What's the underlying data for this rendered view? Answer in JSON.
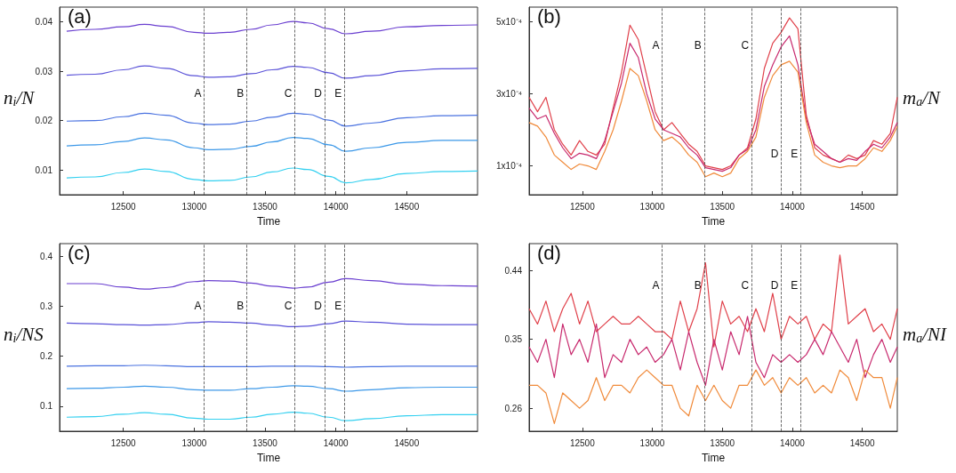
{
  "chart_data": [
    {
      "type": "line",
      "title": "(a)",
      "xlabel": "Time",
      "ylabel": "n$_{i}$/N",
      "marker": "none",
      "x": [
        12100,
        12300,
        12500,
        12650,
        12800,
        13000,
        13100,
        13250,
        13400,
        13550,
        13700,
        13800,
        13950,
        14070,
        14250,
        14500,
        14750,
        15000
      ],
      "xlim": [
        12050,
        15000
      ],
      "xticks": [
        12500,
        13000,
        13500,
        14000,
        14500
      ],
      "ylim": [
        0.005,
        0.043
      ],
      "yticks": [
        0.01,
        0.02,
        0.03,
        0.04
      ],
      "series": [
        {
          "color": "#6a3fd0",
          "values": [
            0.0381,
            0.0385,
            0.039,
            0.0395,
            0.0391,
            0.0379,
            0.0377,
            0.0379,
            0.0385,
            0.0394,
            0.0401,
            0.0398,
            0.0386,
            0.0376,
            0.0381,
            0.039,
            0.0393,
            0.0394
          ]
        },
        {
          "color": "#5a52d8",
          "values": [
            0.0292,
            0.0294,
            0.0303,
            0.0311,
            0.0306,
            0.0291,
            0.0288,
            0.0289,
            0.0295,
            0.0303,
            0.031,
            0.0308,
            0.0297,
            0.0286,
            0.0291,
            0.0301,
            0.0305,
            0.0306
          ]
        },
        {
          "color": "#4a72e0",
          "values": [
            0.0199,
            0.02,
            0.0208,
            0.0215,
            0.0211,
            0.0195,
            0.0192,
            0.0193,
            0.0199,
            0.0207,
            0.0215,
            0.0213,
            0.0201,
            0.0189,
            0.0195,
            0.0206,
            0.021,
            0.0211
          ]
        },
        {
          "color": "#3c98e8",
          "values": [
            0.0149,
            0.0151,
            0.0158,
            0.0165,
            0.0161,
            0.0145,
            0.0141,
            0.0142,
            0.0148,
            0.0157,
            0.0166,
            0.0164,
            0.0151,
            0.0138,
            0.0145,
            0.0156,
            0.016,
            0.016
          ]
        },
        {
          "color": "#33d0f0",
          "values": [
            0.0084,
            0.0086,
            0.0095,
            0.0102,
            0.0097,
            0.0081,
            0.0078,
            0.0079,
            0.0086,
            0.0096,
            0.0104,
            0.0101,
            0.0087,
            0.0074,
            0.0081,
            0.0093,
            0.0097,
            0.0098
          ]
        }
      ],
      "ref_lines": [
        {
          "axis": "x",
          "value": 13070,
          "line_style": "dashed"
        },
        {
          "axis": "x",
          "value": 13370,
          "line_style": "dashed"
        },
        {
          "axis": "x",
          "value": 13710,
          "line_style": "dashed"
        },
        {
          "axis": "x",
          "value": 13920,
          "line_style": "dashed"
        },
        {
          "axis": "x",
          "value": 14060,
          "line_style": "dashed"
        }
      ],
      "annotations": [
        {
          "text": "A",
          "x": 13070,
          "y": 0.0255
        },
        {
          "text": "B",
          "x": 13370,
          "y": 0.0255
        },
        {
          "text": "C",
          "x": 13710,
          "y": 0.0255
        },
        {
          "text": "D",
          "x": 13920,
          "y": 0.0255
        },
        {
          "text": "E",
          "x": 14060,
          "y": 0.0255
        }
      ]
    },
    {
      "type": "line",
      "title": "(b)",
      "xlabel": "Time",
      "ylabel": "m$_{a}$/N",
      "marker": "none",
      "x": [
        12120,
        12180,
        12240,
        12300,
        12360,
        12420,
        12480,
        12540,
        12600,
        12660,
        12720,
        12780,
        12840,
        12900,
        12960,
        13020,
        13080,
        13140,
        13200,
        13260,
        13320,
        13380,
        13440,
        13500,
        13560,
        13620,
        13680,
        13740,
        13800,
        13860,
        13920,
        13980,
        14040,
        14100,
        14160,
        14220,
        14280,
        14340,
        14400,
        14460,
        14520,
        14580,
        14640,
        14700,
        14750
      ],
      "xlim": [
        12120,
        14750
      ],
      "xticks": [
        12500,
        13000,
        13500,
        14000,
        14500
      ],
      "ylim": [
        2e-05,
        0.00054
      ],
      "yticks": [
        {
          "value": 0.0001,
          "label": "1x10⁻⁴"
        },
        {
          "value": 0.0003,
          "label": "3x10⁻⁴"
        },
        {
          "value": 0.0005,
          "label": "5x10⁻⁴"
        }
      ],
      "series": [
        {
          "color": "#e0404a",
          "values": [
            0.00029,
            0.00025,
            0.00029,
            0.0002,
            0.00016,
            0.00013,
            0.00017,
            0.00014,
            0.00013,
            0.00016,
            0.00026,
            0.00036,
            0.00049,
            0.00045,
            0.00035,
            0.00025,
            0.0002,
            0.00022,
            0.00019,
            0.00016,
            0.00014,
            0.0001,
            9.5e-05,
            9e-05,
            0.0001,
            0.00013,
            0.00015,
            0.00023,
            0.00037,
            0.00044,
            0.00047,
            0.00051,
            0.00048,
            0.00024,
            0.00015,
            0.00013,
            0.00012,
            0.00011,
            0.00013,
            0.00012,
            0.00013,
            0.00017,
            0.00016,
            0.00019,
            0.00029
          ]
        },
        {
          "color": "#c82a6e",
          "values": [
            0.00026,
            0.00023,
            0.00024,
            0.00019,
            0.00015,
            0.00012,
            0.000135,
            0.00013,
            0.00012,
            0.00017,
            0.00025,
            0.00033,
            0.00044,
            0.0004,
            0.0003,
            0.00023,
            0.0002,
            0.00019,
            0.00018,
            0.00015,
            0.00013,
            9.5e-05,
            9e-05,
            8.5e-05,
            9.5e-05,
            0.00013,
            0.000145,
            0.0002,
            0.00032,
            0.00038,
            0.00043,
            0.00046,
            0.00038,
            0.00023,
            0.00016,
            0.00014,
            0.00012,
            0.00011,
            0.00012,
            0.000115,
            0.00014,
            0.00016,
            0.00015,
            0.00018,
            0.00022
          ]
        },
        {
          "color": "#f08a3a",
          "values": [
            0.00022,
            0.00021,
            0.00018,
            0.00013,
            0.00011,
            9e-05,
            0.000105,
            0.0001,
            9e-05,
            0.00014,
            0.0002,
            0.00028,
            0.00037,
            0.00035,
            0.00028,
            0.0002,
            0.00017,
            0.00018,
            0.00016,
            0.00013,
            0.00011,
            7e-05,
            8e-05,
            7e-05,
            8e-05,
            0.00012,
            0.00014,
            0.00018,
            0.00029,
            0.00035,
            0.00038,
            0.00039,
            0.00036,
            0.00022,
            0.00013,
            0.00011,
            0.0001,
            9.5e-05,
            0.0001,
            0.0001,
            0.00012,
            0.00015,
            0.00014,
            0.00017,
            0.00021
          ]
        }
      ],
      "ref_lines": [
        {
          "axis": "x",
          "value": 13070,
          "line_style": "dashed"
        },
        {
          "axis": "x",
          "value": 13370,
          "line_style": "dashed"
        },
        {
          "axis": "x",
          "value": 13710,
          "line_style": "dashed"
        },
        {
          "axis": "x",
          "value": 13920,
          "line_style": "dashed"
        },
        {
          "axis": "x",
          "value": 14060,
          "line_style": "dashed"
        }
      ],
      "annotations": [
        {
          "text": "A",
          "x": 13070,
          "y": 0.000433
        },
        {
          "text": "B",
          "x": 13370,
          "y": 0.000433
        },
        {
          "text": "C",
          "x": 13710,
          "y": 0.000433
        },
        {
          "text": "D",
          "x": 13920,
          "y": 0.000134
        },
        {
          "text": "E",
          "x": 14060,
          "y": 0.000134
        }
      ]
    },
    {
      "type": "line",
      "title": "(c)",
      "xlabel": "Time",
      "ylabel": "n$_{i}$/NS",
      "marker": "none",
      "x": [
        12100,
        12300,
        12500,
        12650,
        12800,
        13000,
        13100,
        13250,
        13400,
        13550,
        13700,
        13800,
        13950,
        14070,
        14250,
        14500,
        14750,
        15000
      ],
      "xlim": [
        12050,
        15000
      ],
      "xticks": [
        12500,
        13000,
        13500,
        14000,
        14500
      ],
      "ylim": [
        0.05,
        0.425
      ],
      "yticks": [
        0.1,
        0.2,
        0.3,
        0.4
      ],
      "series": [
        {
          "color": "#6a3fd0",
          "values": [
            0.345,
            0.345,
            0.338,
            0.334,
            0.337,
            0.349,
            0.351,
            0.35,
            0.346,
            0.34,
            0.336,
            0.338,
            0.348,
            0.355,
            0.351,
            0.344,
            0.341,
            0.34
          ]
        },
        {
          "color": "#5a52d8",
          "values": [
            0.266,
            0.265,
            0.263,
            0.262,
            0.263,
            0.267,
            0.269,
            0.268,
            0.266,
            0.262,
            0.259,
            0.26,
            0.265,
            0.27,
            0.268,
            0.264,
            0.263,
            0.263
          ]
        },
        {
          "color": "#4a72e0",
          "values": [
            0.18,
            0.181,
            0.181,
            0.182,
            0.181,
            0.179,
            0.179,
            0.179,
            0.179,
            0.18,
            0.18,
            0.18,
            0.179,
            0.178,
            0.179,
            0.18,
            0.18,
            0.18
          ]
        },
        {
          "color": "#3c98e8",
          "values": [
            0.135,
            0.136,
            0.138,
            0.14,
            0.138,
            0.133,
            0.132,
            0.132,
            0.135,
            0.138,
            0.141,
            0.14,
            0.135,
            0.13,
            0.133,
            0.137,
            0.138,
            0.138
          ]
        },
        {
          "color": "#33d0f0",
          "values": [
            0.078,
            0.079,
            0.084,
            0.087,
            0.084,
            0.076,
            0.074,
            0.074,
            0.078,
            0.084,
            0.088,
            0.086,
            0.078,
            0.071,
            0.075,
            0.081,
            0.083,
            0.083
          ]
        }
      ],
      "ref_lines": [
        {
          "axis": "x",
          "value": 13070,
          "line_style": "dashed"
        },
        {
          "axis": "x",
          "value": 13370,
          "line_style": "dashed"
        },
        {
          "axis": "x",
          "value": 13710,
          "line_style": "dashed"
        },
        {
          "axis": "x",
          "value": 13920,
          "line_style": "dashed"
        },
        {
          "axis": "x",
          "value": 14060,
          "line_style": "dashed"
        }
      ],
      "annotations": [
        {
          "text": "A",
          "x": 13070,
          "y": 0.301
        },
        {
          "text": "B",
          "x": 13370,
          "y": 0.301
        },
        {
          "text": "C",
          "x": 13710,
          "y": 0.301
        },
        {
          "text": "D",
          "x": 13920,
          "y": 0.301
        },
        {
          "text": "E",
          "x": 14060,
          "y": 0.301
        }
      ]
    },
    {
      "type": "line",
      "title": "(d)",
      "xlabel": "Time",
      "ylabel": "m$_{a}$/NI",
      "marker": "none",
      "x": [
        12120,
        12180,
        12240,
        12300,
        12360,
        12420,
        12480,
        12540,
        12600,
        12660,
        12720,
        12780,
        12840,
        12900,
        12960,
        13020,
        13080,
        13140,
        13200,
        13260,
        13320,
        13380,
        13440,
        13500,
        13560,
        13620,
        13680,
        13740,
        13800,
        13860,
        13920,
        13980,
        14040,
        14100,
        14160,
        14220,
        14280,
        14340,
        14400,
        14460,
        14520,
        14580,
        14640,
        14700,
        14750
      ],
      "xlim": [
        12120,
        14750
      ],
      "xticks": [
        12500,
        13000,
        13500,
        14000,
        14500
      ],
      "ylim": [
        0.23,
        0.475
      ],
      "yticks": [
        0.26,
        0.35,
        0.44
      ],
      "series": [
        {
          "color": "#e0404a",
          "values": [
            0.39,
            0.37,
            0.4,
            0.36,
            0.39,
            0.41,
            0.37,
            0.4,
            0.36,
            0.37,
            0.38,
            0.37,
            0.37,
            0.38,
            0.37,
            0.36,
            0.36,
            0.35,
            0.4,
            0.36,
            0.39,
            0.45,
            0.34,
            0.4,
            0.37,
            0.38,
            0.36,
            0.39,
            0.36,
            0.41,
            0.35,
            0.38,
            0.37,
            0.38,
            0.35,
            0.37,
            0.36,
            0.46,
            0.37,
            0.38,
            0.39,
            0.36,
            0.37,
            0.35,
            0.39
          ]
        },
        {
          "color": "#c82a6e",
          "values": [
            0.34,
            0.32,
            0.35,
            0.3,
            0.37,
            0.33,
            0.35,
            0.32,
            0.37,
            0.3,
            0.33,
            0.32,
            0.35,
            0.33,
            0.34,
            0.32,
            0.33,
            0.35,
            0.31,
            0.36,
            0.32,
            0.29,
            0.35,
            0.31,
            0.36,
            0.33,
            0.38,
            0.32,
            0.3,
            0.33,
            0.32,
            0.33,
            0.32,
            0.33,
            0.35,
            0.33,
            0.36,
            0.34,
            0.32,
            0.35,
            0.3,
            0.33,
            0.35,
            0.32,
            0.34
          ]
        },
        {
          "color": "#f08a3a",
          "values": [
            0.29,
            0.29,
            0.28,
            0.24,
            0.28,
            0.27,
            0.26,
            0.27,
            0.3,
            0.27,
            0.29,
            0.29,
            0.28,
            0.3,
            0.31,
            0.3,
            0.29,
            0.29,
            0.26,
            0.25,
            0.29,
            0.27,
            0.29,
            0.27,
            0.26,
            0.29,
            0.29,
            0.31,
            0.29,
            0.3,
            0.28,
            0.3,
            0.29,
            0.3,
            0.28,
            0.29,
            0.28,
            0.31,
            0.3,
            0.27,
            0.31,
            0.3,
            0.3,
            0.26,
            0.3
          ]
        }
      ],
      "ref_lines": [
        {
          "axis": "x",
          "value": 13070,
          "line_style": "dashed"
        },
        {
          "axis": "x",
          "value": 13370,
          "line_style": "dashed"
        },
        {
          "axis": "x",
          "value": 13710,
          "line_style": "dashed"
        },
        {
          "axis": "x",
          "value": 13920,
          "line_style": "dashed"
        },
        {
          "axis": "x",
          "value": 14060,
          "line_style": "dashed"
        }
      ],
      "annotations": [
        {
          "text": "A",
          "x": 13070,
          "y": 0.42
        },
        {
          "text": "B",
          "x": 13370,
          "y": 0.42
        },
        {
          "text": "C",
          "x": 13710,
          "y": 0.42
        },
        {
          "text": "D",
          "x": 13920,
          "y": 0.42
        },
        {
          "text": "E",
          "x": 14060,
          "y": 0.42
        }
      ]
    }
  ]
}
